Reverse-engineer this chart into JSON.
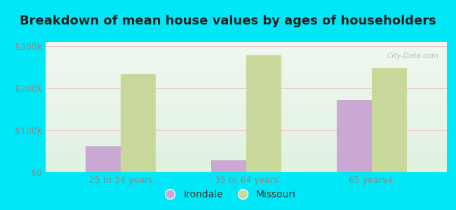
{
  "title": "Breakdown of mean house values by ages of householders",
  "categories": [
    "25 to 34 years",
    "35 to 64 years",
    "65 years+"
  ],
  "irondale_values": [
    62000,
    28000,
    172000
  ],
  "missouri_values": [
    233000,
    278000,
    248000
  ],
  "irondale_color": "#c9a8d4",
  "missouri_color": "#c8d89a",
  "background_color": "#00e8f8",
  "plot_bg_top": "#d8eecf",
  "plot_bg_bottom": "#f0f8ee",
  "ylim": [
    0,
    310000
  ],
  "yticks": [
    0,
    100000,
    200000,
    300000
  ],
  "ytick_labels": [
    "$0",
    "$100k",
    "$200k",
    "$300k"
  ],
  "legend_labels": [
    "Irondale",
    "Missouri"
  ],
  "bar_width": 0.28,
  "title_fontsize": 13,
  "tick_fontsize": 9,
  "legend_fontsize": 10,
  "title_color": "#222222",
  "tick_color": "#888888"
}
